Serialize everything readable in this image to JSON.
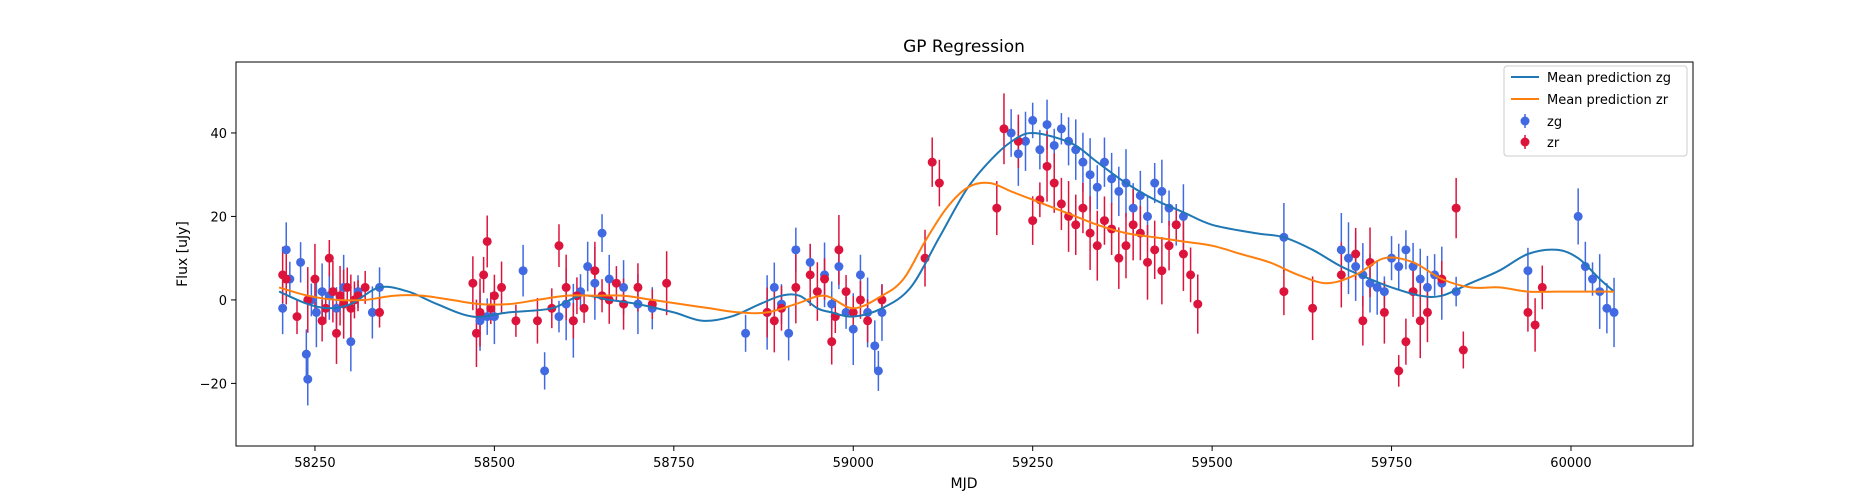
{
  "chart_data": {
    "type": "scatter",
    "title": "GP Regression",
    "xlabel": "MJD",
    "ylabel": "Flux [uJy]",
    "xlim": [
      58140,
      60170
    ],
    "ylim": [
      -35,
      57
    ],
    "xticks": [
      58250,
      58500,
      58750,
      59000,
      59250,
      59500,
      59750,
      60000
    ],
    "yticks": [
      -20,
      0,
      20,
      40
    ],
    "grid": false,
    "legend_position": "top-right",
    "legend": {
      "line_zg": "Mean prediction zg",
      "line_zr": "Mean prediction zr",
      "points_zg": "zg",
      "points_zr": "zr"
    },
    "colors": {
      "line_zg": "#1f77b4",
      "line_zr": "#ff7f0e",
      "points_zg": "#4169e1",
      "points_zr": "#dc143c"
    },
    "mean_prediction_zg": {
      "x": [
        58200,
        58240,
        58270,
        58300,
        58340,
        58380,
        58420,
        58470,
        58520,
        58580,
        58620,
        58660,
        58700,
        58750,
        58790,
        58830,
        58870,
        58900,
        58925,
        58950,
        58970,
        59000,
        59040,
        59080,
        59120,
        59160,
        59200,
        59230,
        59250,
        59280,
        59310,
        59340,
        59380,
        59420,
        59460,
        59500,
        59560,
        59600,
        59640,
        59680,
        59720,
        59750,
        59790,
        59820,
        59860,
        59900,
        59940,
        59980,
        60010,
        60040,
        60060
      ],
      "y": [
        2,
        -1,
        -2,
        -1,
        3,
        2,
        -1,
        -4,
        -3,
        -2,
        1,
        0,
        -1,
        -3,
        -5,
        -4,
        -1,
        1,
        1,
        -2,
        -3,
        -4,
        -2,
        3,
        15,
        27,
        35,
        39,
        40,
        39,
        37,
        33,
        28,
        24,
        21,
        18,
        16,
        15,
        12,
        8,
        5,
        3,
        1,
        1,
        4,
        7,
        11,
        12,
        10,
        5,
        2
      ]
    },
    "mean_prediction_zr": {
      "x": [
        58200,
        58240,
        58280,
        58320,
        58360,
        58400,
        58440,
        58480,
        58520,
        58560,
        58600,
        58640,
        58680,
        58720,
        58760,
        58800,
        58840,
        58880,
        58920,
        58960,
        59000,
        59040,
        59070,
        59100,
        59130,
        59160,
        59190,
        59220,
        59250,
        59280,
        59310,
        59340,
        59380,
        59420,
        59460,
        59500,
        59540,
        59580,
        59620,
        59660,
        59700,
        59740,
        59780,
        59820,
        59860,
        59900,
        59940,
        59980,
        60020,
        60060
      ],
      "y": [
        3,
        1,
        0,
        0,
        1,
        1,
        0,
        -1,
        -1,
        0,
        1,
        1,
        1,
        0,
        -1,
        -2,
        -3,
        -3,
        -1,
        1,
        -2,
        1,
        5,
        14,
        22,
        27,
        28,
        26,
        24,
        22,
        20,
        18,
        16,
        15,
        14,
        13,
        11,
        9,
        6,
        4,
        6,
        10,
        9,
        5,
        3,
        3,
        2,
        2,
        2,
        2
      ]
    },
    "points_zg": {
      "x": [
        58205,
        58210,
        58215,
        58230,
        58238,
        58240,
        58245,
        58252,
        58260,
        58270,
        58280,
        58290,
        58300,
        58310,
        58330,
        58340,
        58480,
        58490,
        58500,
        58540,
        58570,
        58590,
        58600,
        58610,
        58620,
        58630,
        58640,
        58650,
        58660,
        58680,
        58700,
        58720,
        58850,
        58880,
        58890,
        58900,
        58910,
        58920,
        58940,
        58960,
        58970,
        58980,
        58990,
        59000,
        59010,
        59020,
        59030,
        59035,
        59040,
        59220,
        59230,
        59240,
        59250,
        59260,
        59270,
        59280,
        59290,
        59300,
        59310,
        59320,
        59330,
        59340,
        59350,
        59360,
        59370,
        59380,
        59390,
        59400,
        59410,
        59420,
        59430,
        59440,
        59450,
        59460,
        59600,
        59680,
        59690,
        59700,
        59710,
        59720,
        59730,
        59740,
        59750,
        59760,
        59770,
        59780,
        59790,
        59800,
        59810,
        59820,
        59840,
        59940,
        60010,
        60020,
        60030,
        60040,
        60050,
        60060
      ],
      "y": [
        -2,
        12,
        5,
        9,
        -13,
        -19,
        0,
        -3,
        2,
        1,
        -2,
        3,
        -10,
        2,
        -3,
        3,
        -5,
        -4,
        -4,
        7,
        -17,
        -4,
        -1,
        -5,
        2,
        8,
        4,
        16,
        5,
        3,
        -1,
        -2,
        -8,
        -3,
        3,
        -1,
        -8,
        12,
        9,
        6,
        -1,
        8,
        -3,
        -7,
        6,
        -3,
        -11,
        -17,
        -3,
        40,
        35,
        38,
        43,
        36,
        42,
        37,
        41,
        38,
        36,
        33,
        30,
        27,
        33,
        29,
        26,
        28,
        22,
        25,
        20,
        28,
        26,
        22,
        18,
        20,
        15,
        12,
        10,
        8,
        6,
        4,
        3,
        2,
        10,
        8,
        12,
        8,
        5,
        3,
        6,
        4,
        2,
        7,
        20,
        8,
        5,
        2,
        -2,
        -3
      ]
    },
    "points_zr": {
      "x": [
        58205,
        58210,
        58225,
        58240,
        58250,
        58260,
        58265,
        58270,
        58275,
        58280,
        58285,
        58290,
        58295,
        58300,
        58305,
        58310,
        58320,
        58340,
        58470,
        58475,
        58480,
        58485,
        58490,
        58495,
        58500,
        58510,
        58530,
        58560,
        58580,
        58590,
        58600,
        58610,
        58615,
        58625,
        58640,
        58650,
        58660,
        58670,
        58680,
        58700,
        58720,
        58740,
        58880,
        58890,
        58900,
        58920,
        58940,
        58950,
        58960,
        58970,
        58975,
        58980,
        58990,
        59000,
        59010,
        59020,
        59040,
        59100,
        59110,
        59120,
        59200,
        59210,
        59230,
        59250,
        59260,
        59270,
        59280,
        59290,
        59300,
        59310,
        59320,
        59330,
        59340,
        59350,
        59360,
        59370,
        59380,
        59390,
        59400,
        59410,
        59420,
        59430,
        59440,
        59450,
        59460,
        59470,
        59480,
        59600,
        59640,
        59680,
        59700,
        59710,
        59720,
        59740,
        59760,
        59770,
        59780,
        59790,
        59800,
        59820,
        59840,
        59850,
        59940,
        59950,
        59960
      ],
      "y": [
        6,
        5,
        -4,
        0,
        5,
        -5,
        -2,
        10,
        2,
        -8,
        1,
        -1,
        3,
        -2,
        0,
        1,
        3,
        -3,
        4,
        -8,
        -3,
        6,
        14,
        -2,
        1,
        3,
        -5,
        -5,
        -2,
        13,
        3,
        -5,
        1,
        -2,
        7,
        1,
        0,
        4,
        -1,
        3,
        -1,
        4,
        -3,
        -5,
        -2,
        3,
        6,
        2,
        5,
        -10,
        -4,
        12,
        2,
        -3,
        0,
        -5,
        0,
        10,
        33,
        28,
        22,
        41,
        38,
        19,
        24,
        32,
        28,
        23,
        20,
        18,
        22,
        16,
        13,
        19,
        17,
        10,
        13,
        18,
        16,
        9,
        12,
        7,
        13,
        18,
        11,
        6,
        -1,
        2,
        -2,
        6,
        11,
        -5,
        9,
        -3,
        -17,
        -10,
        2,
        -5,
        -3,
        5,
        22,
        -12,
        -3,
        -6,
        3
      ]
    }
  }
}
